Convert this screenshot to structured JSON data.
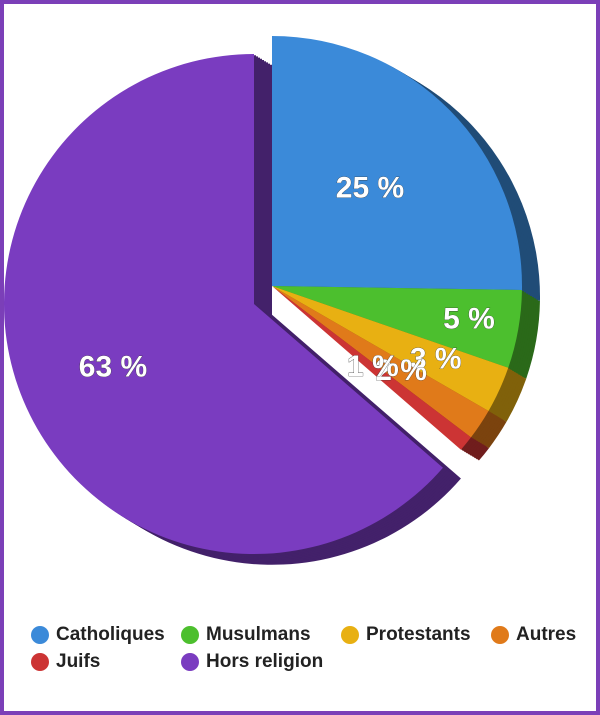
{
  "chart_data": {
    "type": "pie",
    "categories": [
      "Catholiques",
      "Musulmans",
      "Protestants",
      "Autres",
      "Juifs",
      "Hors religion"
    ],
    "values": [
      25,
      5,
      3,
      2,
      1,
      63
    ],
    "value_labels": [
      "25 %",
      "5 %",
      "3 %",
      "2 %",
      "1 %",
      "63 %"
    ],
    "colors": [
      "#3b8ad9",
      "#4cbf2e",
      "#e8b012",
      "#e07a1a",
      "#cc3434",
      "#7a3cc0"
    ]
  }
}
